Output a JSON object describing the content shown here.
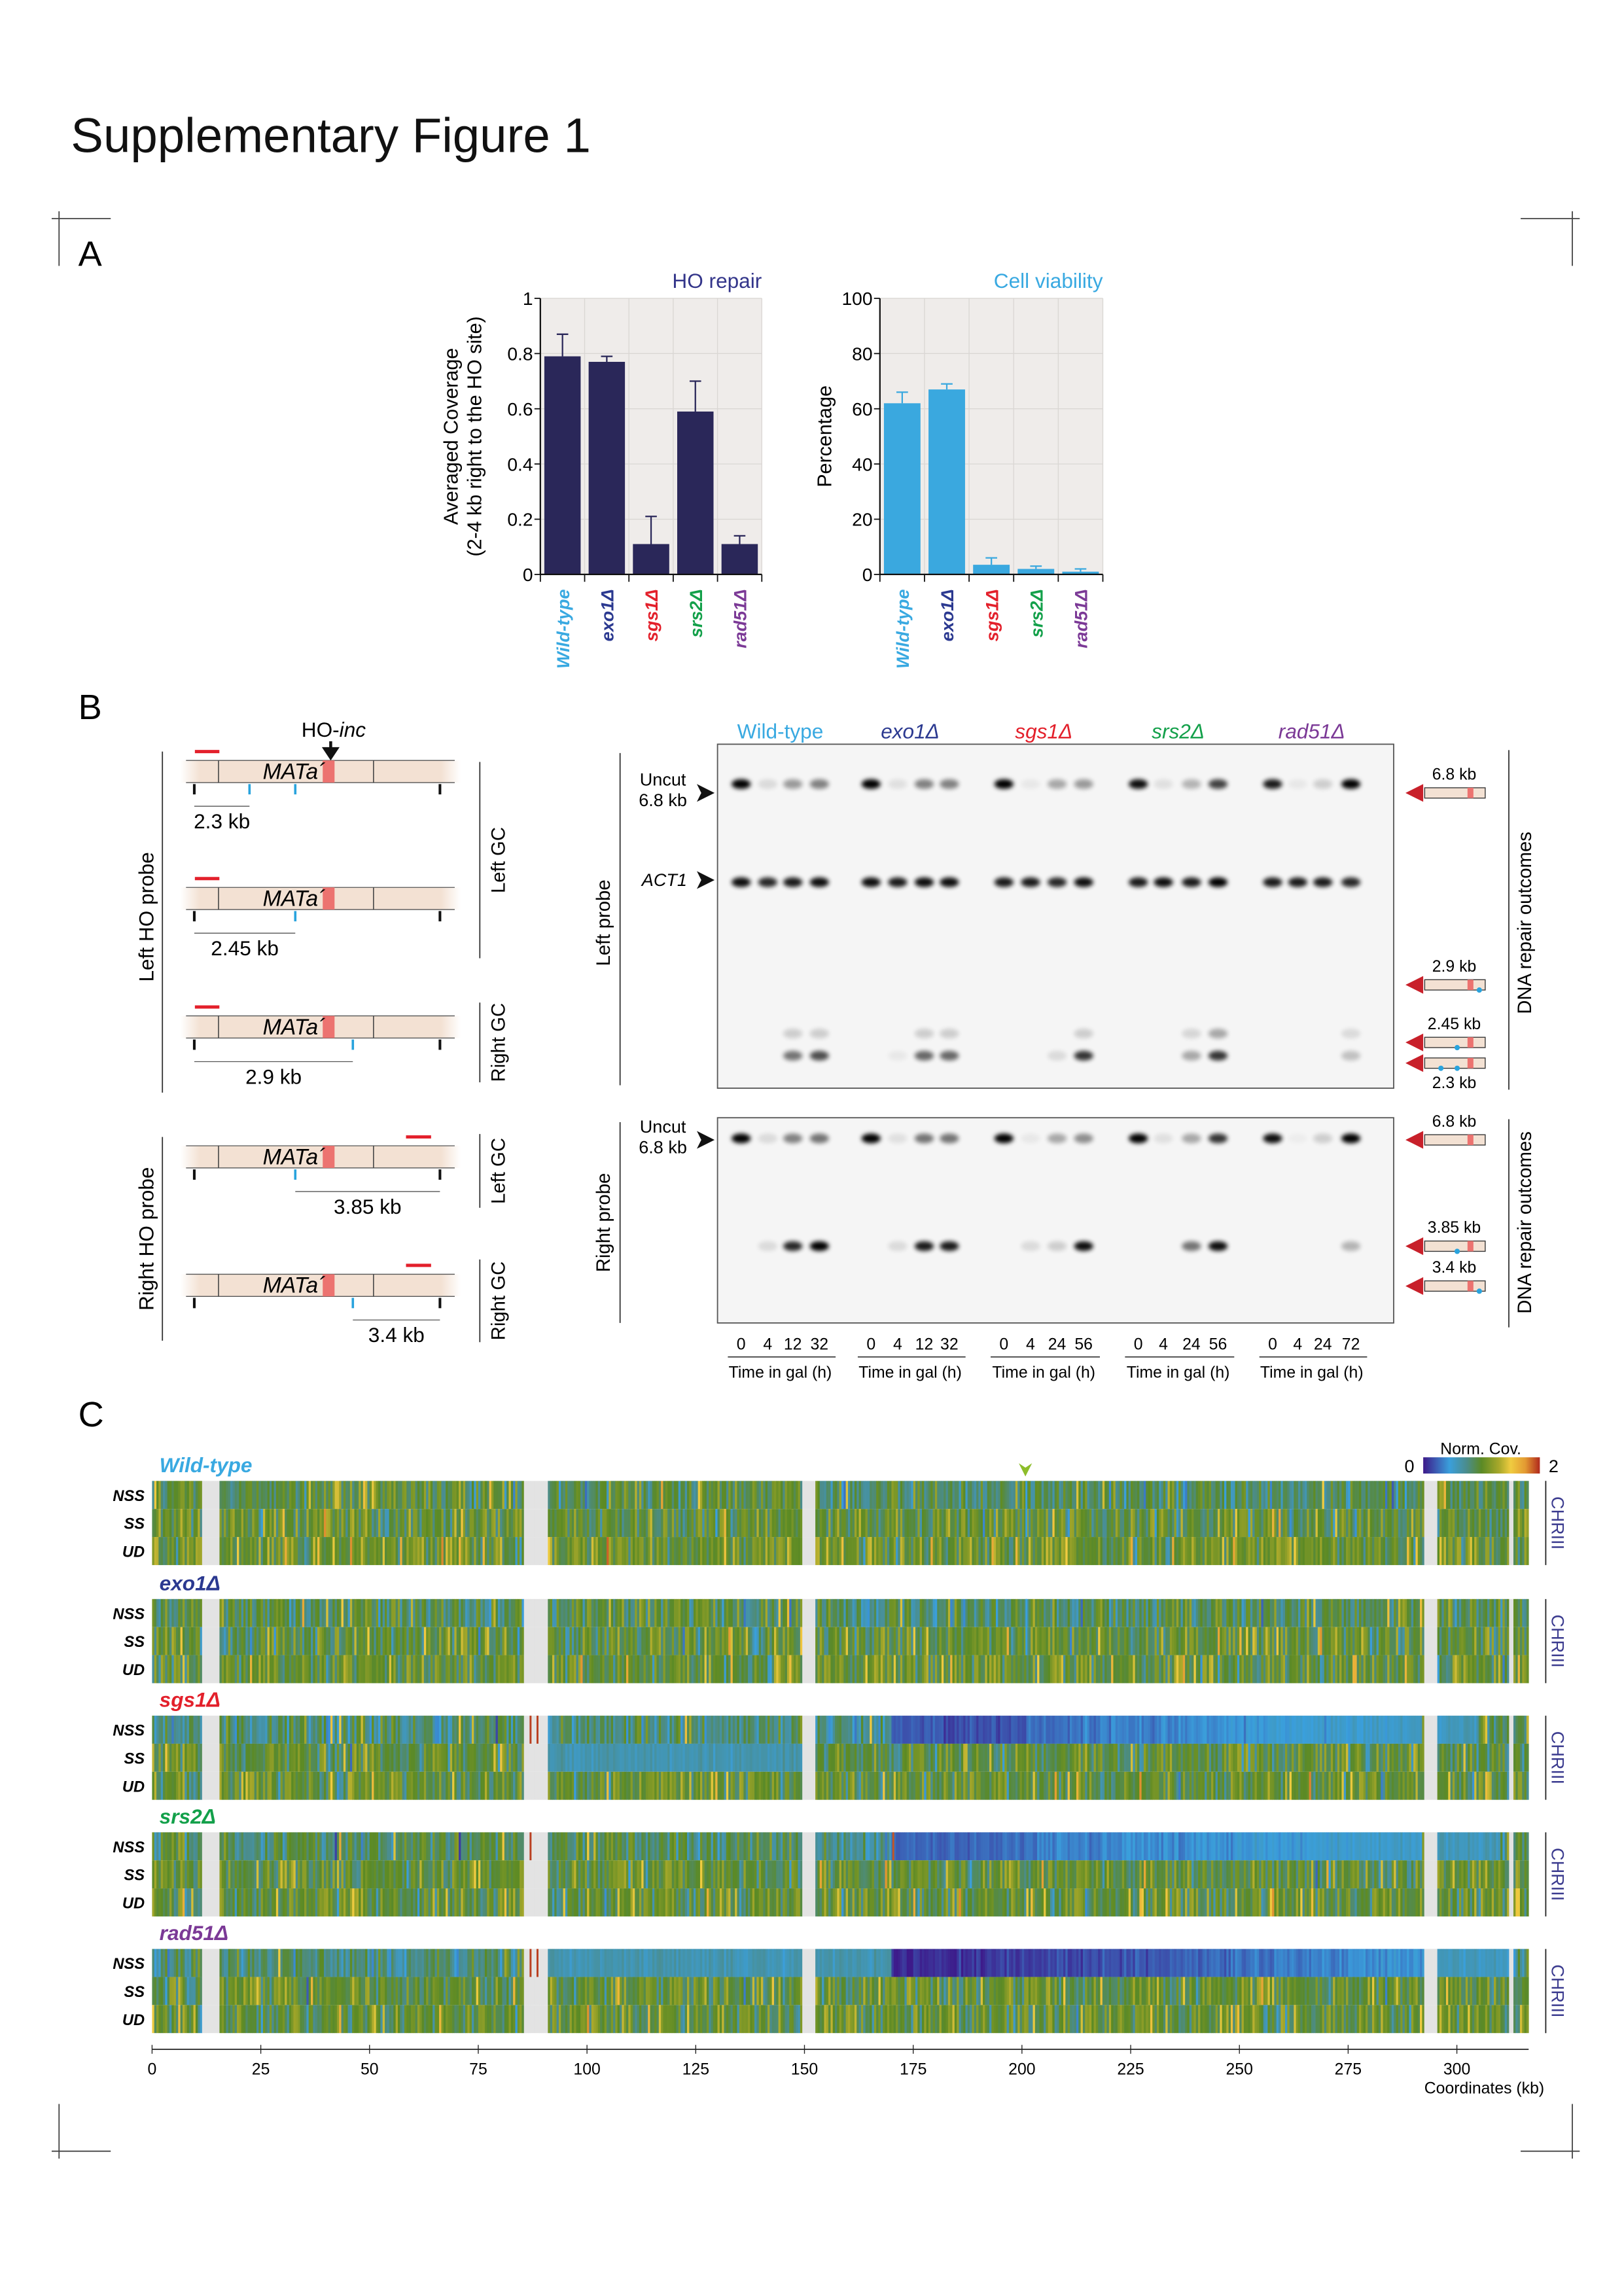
{
  "figure_title": "Supplementary Figure 1",
  "panels": {
    "a": "A",
    "b": "B",
    "c": "C"
  },
  "genotypes": [
    {
      "label": "Wild-type",
      "color": "#39a9e1",
      "italic": false
    },
    {
      "label": "exo1Δ",
      "color": "#2b3990",
      "italic": true
    },
    {
      "label": "sgs1Δ",
      "color": "#e3202b",
      "italic": true
    },
    {
      "label": "srs2Δ",
      "color": "#13a04a",
      "italic": true
    },
    {
      "label": "rad51Δ",
      "color": "#7b3996",
      "italic": true
    }
  ],
  "chart_data": [
    {
      "type": "bar",
      "title": "HO repair",
      "title_color": "#33358a",
      "ylabel": [
        "Averaged Coverage",
        "(2-4 kb right to the HO site)"
      ],
      "categories": [
        "Wild-type",
        "exo1Δ",
        "sgs1Δ",
        "srs2Δ",
        "rad51Δ"
      ],
      "values": [
        0.79,
        0.77,
        0.11,
        0.59,
        0.11
      ],
      "error_upper": [
        0.87,
        0.79,
        0.21,
        0.7,
        0.14
      ],
      "ylim": [
        0,
        1
      ],
      "yticks": [
        "0",
        "0.2",
        "0.4",
        "0.6",
        "0.8",
        "1"
      ],
      "bar_color": "#2a2759",
      "background": "#efecea",
      "grid": true
    },
    {
      "type": "bar",
      "title": "Cell viability",
      "title_color": "#39a9e1",
      "ylabel": [
        "Percentage"
      ],
      "categories": [
        "Wild-type",
        "exo1Δ",
        "sgs1Δ",
        "srs2Δ",
        "rad51Δ"
      ],
      "values": [
        62,
        67,
        3.5,
        2,
        1
      ],
      "error_upper": [
        66,
        69,
        6,
        3,
        2
      ],
      "ylim": [
        0,
        100
      ],
      "yticks": [
        "0",
        "20",
        "40",
        "60",
        "80",
        "100"
      ],
      "bar_color": "#3aa8df",
      "background": "#efecea",
      "grid": true
    },
    {
      "type": "heatmap",
      "xlabel": "Coordinates (kb)",
      "xlim": [
        0,
        316.5
      ],
      "xticks": [
        "0",
        "25",
        "50",
        "75",
        "100",
        "125",
        "150",
        "175",
        "200",
        "225",
        "250",
        "275",
        "300"
      ],
      "rows": [
        "NSS",
        "SS",
        "UD"
      ],
      "chromosome_label": "CHRIII",
      "colorbar": {
        "title": "Norm. Cov.",
        "min": "0",
        "max": "2",
        "stops": [
          [
            0,
            "#3d1a8a"
          ],
          [
            0.45,
            "#3a9fdc"
          ],
          [
            0.75,
            "#4b8c8a"
          ],
          [
            1,
            "#5b8a25"
          ],
          [
            1.3,
            "#a8a82a"
          ],
          [
            1.5,
            "#f0cc40"
          ],
          [
            1.75,
            "#e39a32"
          ],
          [
            2,
            "#b0281c"
          ]
        ]
      },
      "ho_site_kb": 201,
      "no_data_regions_kb": [
        [
          11.2,
          15.3
        ],
        [
          85.5,
          90.6
        ],
        [
          149.3,
          152.3
        ],
        [
          292.5,
          295.2
        ],
        [
          312,
          312.6
        ]
      ],
      "groups": [
        {
          "label": "Wild-type",
          "profiles": {
            "NSS": [
              [
                0,
                150,
                0.95,
                0.95
              ],
              [
                152,
                292,
                0.85,
                0.88
              ],
              [
                295,
                317,
                0.95,
                0.95
              ]
            ],
            "SS": [
              [
                0,
                317,
                1.0,
                1.0
              ]
            ],
            "UD": [
              [
                0,
                317,
                1.05,
                1.05
              ]
            ]
          },
          "spikes": [
            {
              "row": "NSS",
              "kb": 200.8,
              "value": 0.45
            },
            {
              "row": "SS",
              "kb": 200.8,
              "value": 0.45
            }
          ]
        },
        {
          "label": "exo1Δ",
          "profiles": {
            "NSS": [
              [
                0,
                150,
                0.92,
                0.92
              ],
              [
                152,
                292,
                0.85,
                0.88
              ],
              [
                295,
                317,
                0.95,
                0.95
              ]
            ],
            "SS": [
              [
                0,
                317,
                1.0,
                1.0
              ]
            ],
            "UD": [
              [
                0,
                317,
                1.02,
                1.02
              ]
            ]
          },
          "spikes": [
            {
              "row": "NSS",
              "kb": 200.8,
              "value": 0.45
            },
            {
              "row": "SS",
              "kb": 200.8,
              "value": 0.45
            }
          ]
        },
        {
          "label": "sgs1Δ",
          "profiles": {
            "NSS": [
              [
                0,
                85,
                0.82,
                0.82
              ],
              [
                90,
                150,
                0.78,
                0.78
              ],
              [
                152,
                170,
                0.75,
                0.75
              ],
              [
                170,
                201,
                0.22,
                0.18
              ],
              [
                201,
                292,
                0.28,
                0.55
              ],
              [
                295,
                305,
                0.55,
                0.6
              ],
              [
                305,
                317,
                0.95,
                0.95
              ]
            ],
            "SS": [
              [
                0,
                85,
                1.0,
                1.0
              ],
              [
                90.6,
                150,
                0.62,
                0.62
              ],
              [
                152,
                317,
                1.0,
                1.0
              ]
            ],
            "UD": [
              [
                0,
                317,
                1.0,
                1.0
              ]
            ]
          },
          "spikes": [
            {
              "row": "NSS",
              "kb": 86.8,
              "value": 1.95
            },
            {
              "row": "NSS",
              "kb": 88.4,
              "value": 1.95
            }
          ]
        },
        {
          "label": "srs2Δ",
          "profiles": {
            "NSS": [
              [
                0,
                150,
                0.88,
                0.88
              ],
              [
                152,
                170,
                0.72,
                0.72
              ],
              [
                170,
                201,
                0.25,
                0.3
              ],
              [
                201,
                292,
                0.32,
                0.55
              ],
              [
                295,
                310,
                0.55,
                0.58
              ],
              [
                310,
                317,
                0.95,
                0.95
              ]
            ],
            "SS": [
              [
                0,
                317,
                1.0,
                1.0
              ]
            ],
            "UD": [
              [
                0,
                317,
                1.0,
                1.0
              ]
            ]
          },
          "spikes": [
            {
              "row": "NSS",
              "kb": 86.8,
              "value": 1.95
            },
            {
              "row": "NSS",
              "kb": 170.2,
              "value": 1.9
            }
          ]
        },
        {
          "label": "rad51Δ",
          "profiles": {
            "NSS": [
              [
                0,
                85,
                0.8,
                0.8
              ],
              [
                90.6,
                150,
                0.6,
                0.6
              ],
              [
                152,
                170,
                0.62,
                0.62
              ],
              [
                170,
                292,
                0.03,
                0.42
              ],
              [
                295,
                312,
                0.55,
                0.55
              ],
              [
                312,
                317,
                0.95,
                0.95
              ]
            ],
            "SS": [
              [
                0,
                317,
                1.0,
                1.0
              ]
            ],
            "UD": [
              [
                0,
                317,
                1.0,
                1.0
              ]
            ]
          },
          "spikes": [
            {
              "row": "NSS",
              "kb": 86.8,
              "value": 1.95
            },
            {
              "row": "NSS",
              "kb": 88.4,
              "value": 1.95
            }
          ]
        }
      ]
    }
  ],
  "panel_b": {
    "ho_label": "HO-",
    "ho_label_italic": "inc",
    "locus": "MATa",
    "locus_prime": "´",
    "probe_groups": [
      "Left HO probe",
      "Right HO probe"
    ],
    "gc_labels": [
      "Left GC",
      "Right GC",
      "Left GC",
      "Right GC"
    ],
    "constructs": [
      {
        "size": "2.3 kb",
        "probe": "left"
      },
      {
        "size": "2.45 kb",
        "probe": "left"
      },
      {
        "size": "2.9 kb",
        "probe": "left"
      },
      {
        "size": "3.85 kb",
        "probe": "right"
      },
      {
        "size": "3.4 kb",
        "probe": "right"
      }
    ],
    "lanes": [
      {
        "genotype": "Wild-type",
        "times": [
          "0",
          "4",
          "12",
          "32"
        ]
      },
      {
        "genotype": "exo1Δ",
        "times": [
          "0",
          "4",
          "12",
          "32"
        ]
      },
      {
        "genotype": "sgs1Δ",
        "times": [
          "0",
          "4",
          "24",
          "56"
        ]
      },
      {
        "genotype": "srs2Δ",
        "times": [
          "0",
          "4",
          "24",
          "56"
        ]
      },
      {
        "genotype": "rad51Δ",
        "times": [
          "0",
          "4",
          "24",
          "72"
        ]
      }
    ],
    "time_label": "Time in gal (h)",
    "outcomes_label": "DNA repair outcomes",
    "blots": [
      {
        "probe": "Left probe",
        "left_markers": [
          {
            "label": "Uncut",
            "sub": "6.8 kb"
          },
          {
            "label": "ACT1",
            "sub": ""
          }
        ],
        "bands": [
          {
            "name": "Uncut 6.8 kb",
            "intensity": [
              [
                1,
                0.1,
                0.35,
                0.45
              ],
              [
                1,
                0.08,
                0.45,
                0.45
              ],
              [
                1,
                0.05,
                0.3,
                0.35
              ],
              [
                0.9,
                0.08,
                0.25,
                0.7
              ],
              [
                0.85,
                0.05,
                0.15,
                1
              ]
            ]
          },
          {
            "name": "ACT1",
            "intensity": [
              [
                0.9,
                0.8,
                0.85,
                0.9
              ],
              [
                0.9,
                0.85,
                0.9,
                0.9
              ],
              [
                0.85,
                0.85,
                0.8,
                0.9
              ],
              [
                0.85,
                0.9,
                0.85,
                0.95
              ],
              [
                0.85,
                0.85,
                0.85,
                0.8
              ]
            ]
          },
          {
            "name": "2.45 kb",
            "intensity": [
              [
                0,
                0,
                0.15,
                0.15
              ],
              [
                0,
                0,
                0.15,
                0.15
              ],
              [
                0,
                0,
                0,
                0.15
              ],
              [
                0,
                0,
                0.12,
                0.3
              ],
              [
                0,
                0,
                0,
                0.1
              ]
            ]
          },
          {
            "name": "2.3 kb",
            "intensity": [
              [
                0,
                0,
                0.5,
                0.65
              ],
              [
                0,
                0.05,
                0.55,
                0.55
              ],
              [
                0,
                0,
                0.1,
                0.75
              ],
              [
                0,
                0,
                0.3,
                0.75
              ],
              [
                0,
                0,
                0,
                0.2
              ]
            ]
          }
        ],
        "outcomes": [
          "6.8 kb",
          "2.9 kb",
          "2.45 kb",
          "2.3 kb"
        ]
      },
      {
        "probe": "Right probe",
        "left_markers": [
          {
            "label": "Uncut",
            "sub": "6.8 kb"
          }
        ],
        "bands": [
          {
            "name": "Uncut 6.8 kb",
            "intensity": [
              [
                1,
                0.1,
                0.45,
                0.5
              ],
              [
                1,
                0.08,
                0.5,
                0.5
              ],
              [
                1,
                0.05,
                0.3,
                0.4
              ],
              [
                1,
                0.08,
                0.3,
                0.75
              ],
              [
                0.9,
                0.03,
                0.15,
                1
              ]
            ]
          },
          {
            "name": "3.85 kb",
            "intensity": [
              [
                0,
                0.1,
                0.8,
                0.95
              ],
              [
                0,
                0.1,
                0.85,
                0.85
              ],
              [
                0,
                0.1,
                0.15,
                0.9
              ],
              [
                0,
                0,
                0.5,
                0.9
              ],
              [
                0,
                0,
                0,
                0.25
              ]
            ]
          }
        ],
        "outcomes": [
          "6.8 kb",
          "3.85 kb",
          "3.4 kb"
        ]
      }
    ]
  }
}
